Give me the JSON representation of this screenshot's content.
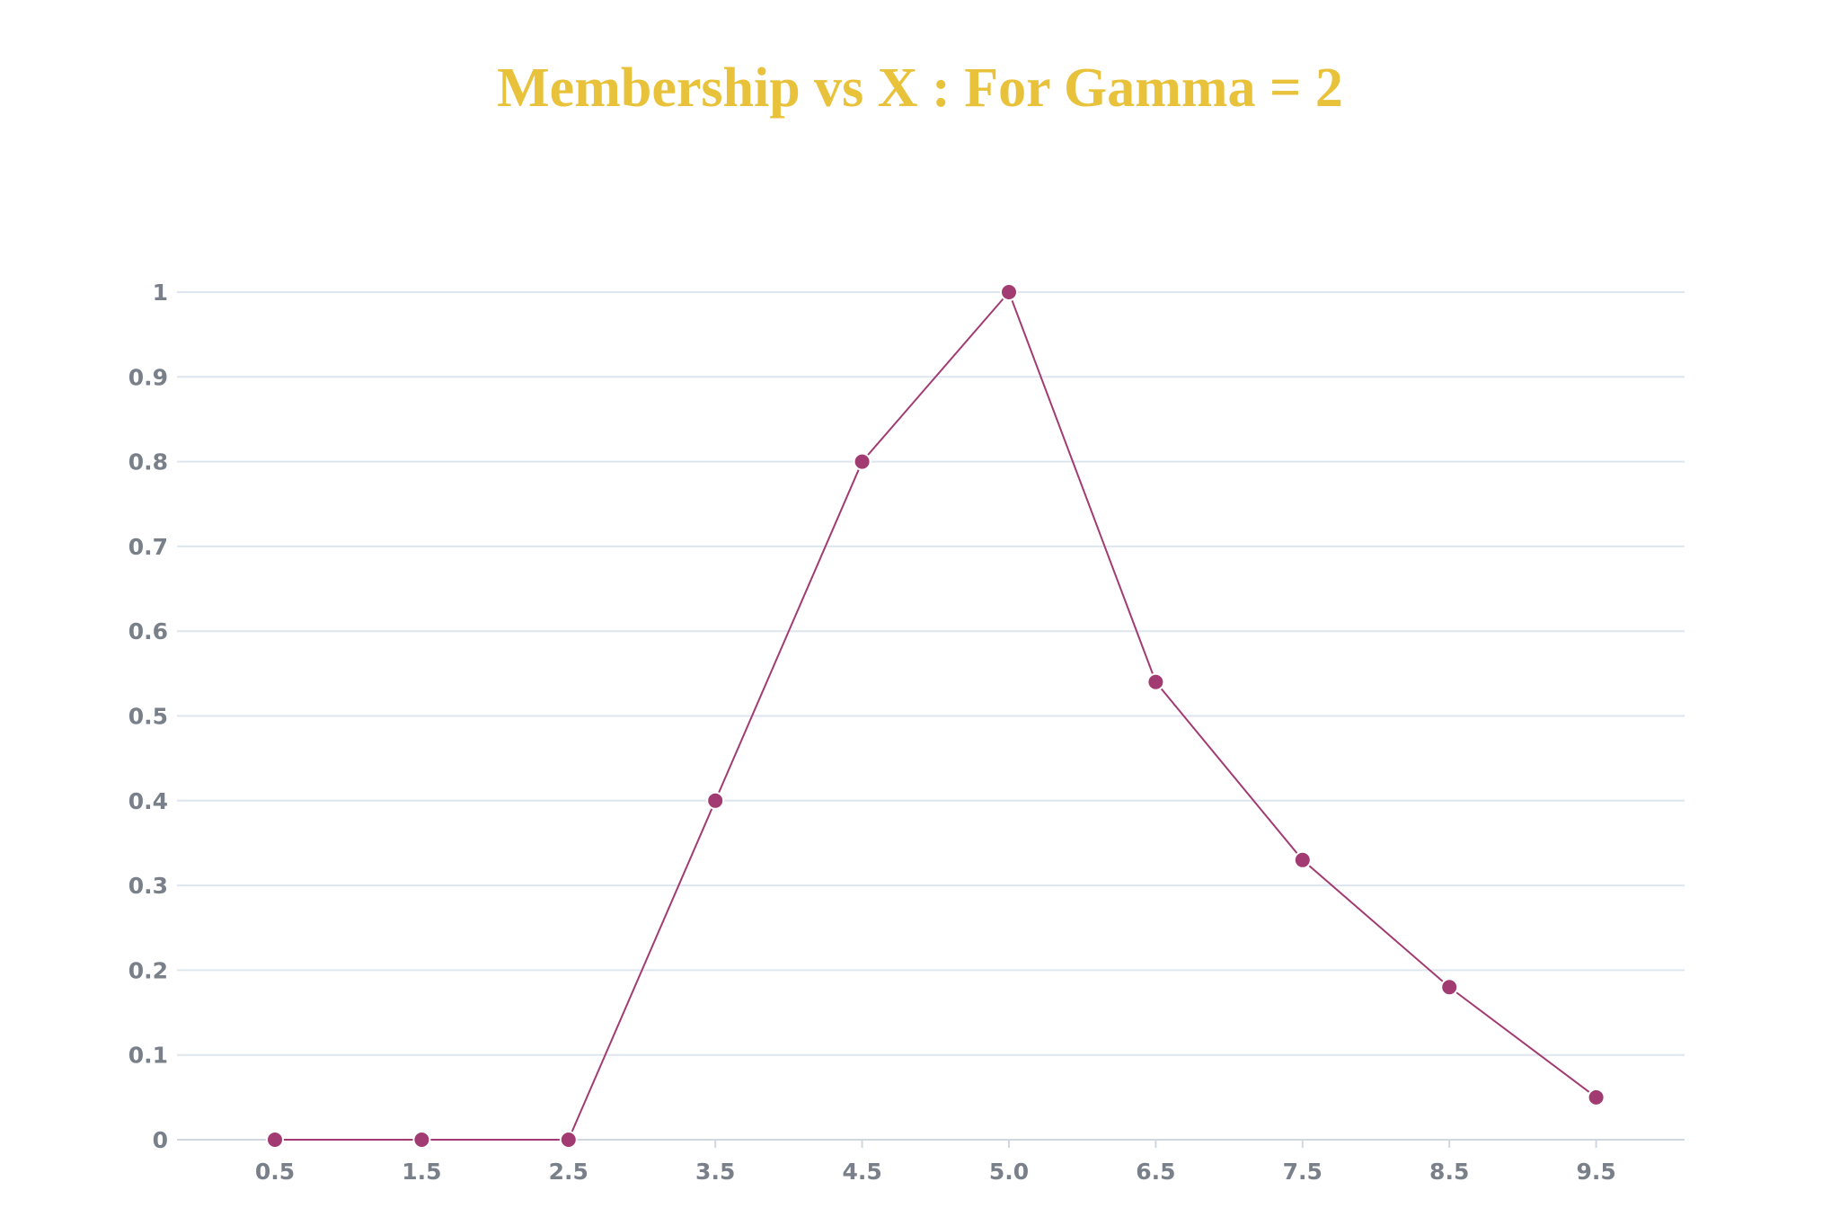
{
  "chart_data": {
    "type": "line",
    "title": "Membership vs X : For Gamma = 2",
    "xlabel": "",
    "ylabel": "",
    "categories": [
      "0.5",
      "1.5",
      "2.5",
      "3.5",
      "4.5",
      "5.0",
      "6.5",
      "7.5",
      "8.5",
      "9.5"
    ],
    "series": [
      {
        "values": [
          0,
          0,
          0,
          0.4,
          0.8,
          1,
          0.54,
          0.33,
          0.18,
          0.05
        ]
      }
    ],
    "y_ticks": [
      "0",
      "0.1",
      "0.2",
      "0.3",
      "0.4",
      "0.5",
      "0.6",
      "0.7",
      "0.8",
      "0.9",
      "1"
    ],
    "ylim": [
      0,
      1
    ],
    "grid": "horizontal",
    "legend": "none"
  },
  "colors": {
    "title": "#e8c23a",
    "line": "#a23b72",
    "marker": "#a23b72",
    "marker_outline": "#ffffff",
    "grid": "#dde6ee",
    "axis": "#cfd8e0",
    "tick_text": "#7a8089"
  }
}
